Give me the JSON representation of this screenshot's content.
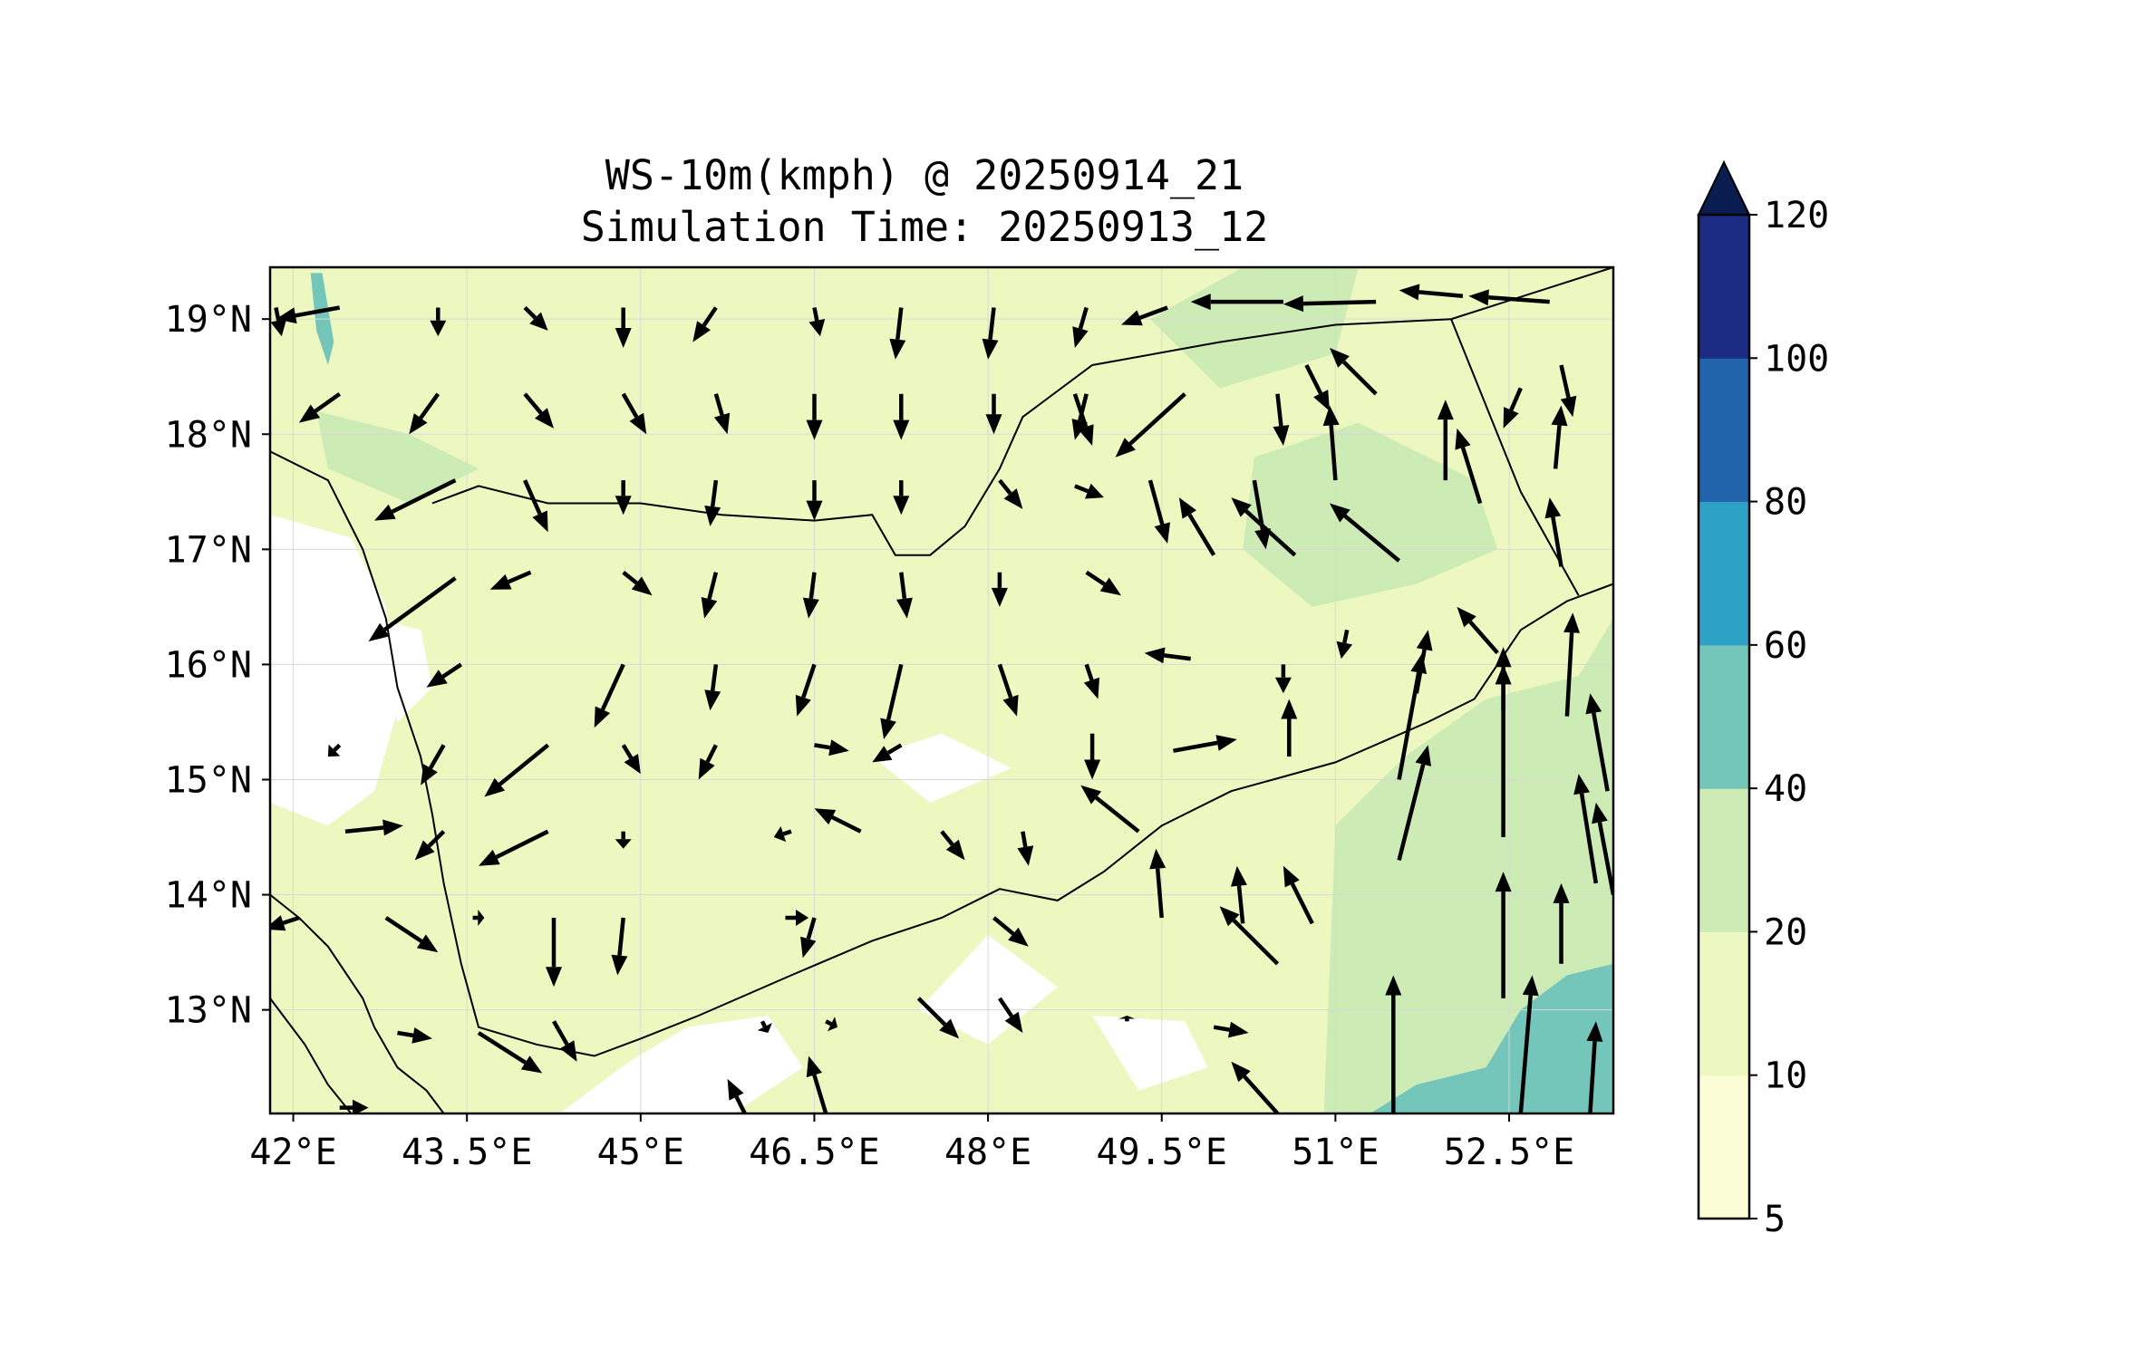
{
  "title": {
    "line1": "WS-10m(kmph) @ 20250914_21",
    "line2": "Simulation Time: 20250913_12"
  },
  "map": {
    "extent": {
      "lon": [
        41.8,
        53.4
      ],
      "lat": [
        12.1,
        19.45
      ]
    },
    "lon_ticks": [
      {
        "value": 42.0,
        "label": "42°E"
      },
      {
        "value": 43.5,
        "label": "43.5°E"
      },
      {
        "value": 45.0,
        "label": "45°E"
      },
      {
        "value": 46.5,
        "label": "46.5°E"
      },
      {
        "value": 48.0,
        "label": "48°E"
      },
      {
        "value": 49.5,
        "label": "49.5°E"
      },
      {
        "value": 51.0,
        "label": "51°E"
      },
      {
        "value": 52.5,
        "label": "52.5°E"
      }
    ],
    "lat_ticks": [
      {
        "value": 19,
        "label": "19°N"
      },
      {
        "value": 18,
        "label": "18°N"
      },
      {
        "value": 17,
        "label": "17°N"
      },
      {
        "value": 16,
        "label": "16°N"
      },
      {
        "value": 15,
        "label": "15°N"
      },
      {
        "value": 14,
        "label": "14°N"
      },
      {
        "value": 13,
        "label": "13°N"
      }
    ],
    "background_color": "#ecf8c0",
    "zones": [
      {
        "level": 5,
        "color": "#ffffff",
        "polygon": [
          [
            41.8,
            17.3
          ],
          [
            42.5,
            17.1
          ],
          [
            42.8,
            16.5
          ],
          [
            42.9,
            15.6
          ],
          [
            42.7,
            14.9
          ],
          [
            42.3,
            14.6
          ],
          [
            41.8,
            14.8
          ]
        ]
      },
      {
        "level": 5,
        "color": "#ffffff",
        "polygon": [
          [
            42.7,
            16.4
          ],
          [
            43.1,
            16.3
          ],
          [
            43.2,
            15.8
          ],
          [
            42.9,
            15.5
          ]
        ]
      },
      {
        "level": 5,
        "color": "#ffffff",
        "polygon": [
          [
            44.3,
            12.1
          ],
          [
            44.9,
            12.55
          ],
          [
            45.4,
            12.85
          ],
          [
            46.1,
            12.95
          ],
          [
            46.4,
            12.5
          ],
          [
            45.8,
            12.1
          ]
        ]
      },
      {
        "level": 5,
        "color": "#ffffff",
        "polygon": [
          [
            47.4,
            13.0
          ],
          [
            48.0,
            13.65
          ],
          [
            48.6,
            13.2
          ],
          [
            48.0,
            12.7
          ]
        ]
      },
      {
        "level": 5,
        "color": "#ffffff",
        "polygon": [
          [
            48.9,
            12.95
          ],
          [
            49.7,
            12.9
          ],
          [
            49.9,
            12.5
          ],
          [
            49.3,
            12.3
          ]
        ]
      },
      {
        "level": 5,
        "color": "#ffffff",
        "polygon": [
          [
            47.0,
            15.2
          ],
          [
            47.6,
            15.4
          ],
          [
            48.2,
            15.1
          ],
          [
            47.5,
            14.8
          ]
        ]
      },
      {
        "level": 20,
        "color": "#cdebb5",
        "polygon": [
          [
            50.3,
            17.8
          ],
          [
            51.2,
            18.1
          ],
          [
            52.2,
            17.6
          ],
          [
            52.4,
            17.0
          ],
          [
            51.7,
            16.7
          ],
          [
            50.8,
            16.5
          ],
          [
            50.2,
            17.0
          ]
        ]
      },
      {
        "level": 20,
        "color": "#cdebb5",
        "polygon": [
          [
            50.9,
            12.1
          ],
          [
            51.0,
            14.6
          ],
          [
            51.6,
            15.2
          ],
          [
            52.3,
            15.7
          ],
          [
            53.1,
            15.9
          ],
          [
            53.4,
            16.4
          ],
          [
            53.4,
            12.1
          ]
        ]
      },
      {
        "level": 20,
        "color": "#cdebb5",
        "polygon": [
          [
            42.2,
            18.2
          ],
          [
            43.0,
            18.0
          ],
          [
            43.6,
            17.7
          ],
          [
            43.0,
            17.4
          ],
          [
            42.3,
            17.7
          ]
        ]
      },
      {
        "level": 20,
        "color": "#cdebb5",
        "polygon": [
          [
            49.4,
            19.0
          ],
          [
            50.2,
            19.45
          ],
          [
            51.2,
            19.45
          ],
          [
            51.0,
            18.7
          ],
          [
            50.0,
            18.4
          ]
        ]
      },
      {
        "level": 40,
        "color": "#74c6bb",
        "polygon": [
          [
            51.3,
            12.1
          ],
          [
            51.7,
            12.35
          ],
          [
            52.3,
            12.5
          ],
          [
            52.6,
            13.0
          ],
          [
            53.0,
            13.3
          ],
          [
            53.4,
            13.4
          ],
          [
            53.4,
            12.1
          ]
        ]
      },
      {
        "level": 40,
        "color": "#74c6bb",
        "polygon": [
          [
            42.15,
            19.4
          ],
          [
            42.25,
            19.4
          ],
          [
            42.35,
            18.8
          ],
          [
            42.3,
            18.6
          ],
          [
            42.2,
            18.9
          ]
        ]
      }
    ],
    "boundaries": [
      [
        [
          41.8,
          17.85
        ],
        [
          42.3,
          17.6
        ],
        [
          42.6,
          17.0
        ],
        [
          42.8,
          16.4
        ],
        [
          42.9,
          15.8
        ],
        [
          43.1,
          15.2
        ],
        [
          43.2,
          14.7
        ],
        [
          43.3,
          14.1
        ],
        [
          43.45,
          13.4
        ],
        [
          43.6,
          12.85
        ],
        [
          44.1,
          12.7
        ],
        [
          44.6,
          12.6
        ],
        [
          45.0,
          12.75
        ],
        [
          45.5,
          12.95
        ],
        [
          46.3,
          13.3
        ],
        [
          47.0,
          13.6
        ],
        [
          47.6,
          13.8
        ],
        [
          48.1,
          14.05
        ],
        [
          48.6,
          13.95
        ],
        [
          49.0,
          14.2
        ],
        [
          49.5,
          14.6
        ],
        [
          50.1,
          14.9
        ],
        [
          51.0,
          15.15
        ],
        [
          51.8,
          15.5
        ],
        [
          52.2,
          15.7
        ],
        [
          52.6,
          16.3
        ],
        [
          53.0,
          16.55
        ],
        [
          53.4,
          16.7
        ]
      ],
      [
        [
          43.2,
          17.4
        ],
        [
          43.6,
          17.55
        ],
        [
          44.2,
          17.4
        ],
        [
          45.0,
          17.4
        ],
        [
          45.7,
          17.3
        ],
        [
          46.5,
          17.25
        ],
        [
          47.0,
          17.3
        ],
        [
          47.2,
          16.95
        ],
        [
          47.5,
          16.95
        ],
        [
          47.8,
          17.2
        ],
        [
          48.1,
          17.7
        ],
        [
          48.3,
          18.15
        ],
        [
          48.9,
          18.6
        ],
        [
          50.0,
          18.8
        ],
        [
          51.0,
          18.95
        ],
        [
          52.0,
          19.0
        ],
        [
          53.4,
          19.45
        ]
      ],
      [
        [
          52.0,
          19.0
        ],
        [
          52.6,
          17.5
        ],
        [
          53.1,
          16.6
        ]
      ],
      [
        [
          41.8,
          14.0
        ],
        [
          42.05,
          13.8
        ],
        [
          42.3,
          13.55
        ],
        [
          42.6,
          13.1
        ],
        [
          42.7,
          12.85
        ],
        [
          42.9,
          12.5
        ],
        [
          43.15,
          12.3
        ],
        [
          43.3,
          12.1
        ]
      ],
      [
        [
          41.8,
          13.1
        ],
        [
          42.1,
          12.7
        ],
        [
          42.3,
          12.35
        ],
        [
          42.5,
          12.1
        ]
      ]
    ],
    "barbs_note": "wind vectors",
    "vectors": [
      [
        41.85,
        19.1,
        0.05,
        -0.25
      ],
      [
        42.4,
        19.1,
        -0.55,
        -0.1
      ],
      [
        43.25,
        19.1,
        0.0,
        -0.25
      ],
      [
        44.0,
        19.1,
        0.2,
        -0.2
      ],
      [
        44.85,
        19.1,
        0.0,
        -0.35
      ],
      [
        45.65,
        19.1,
        -0.2,
        -0.3
      ],
      [
        46.5,
        19.1,
        0.05,
        -0.25
      ],
      [
        47.25,
        19.1,
        -0.05,
        -0.45
      ],
      [
        48.05,
        19.1,
        -0.05,
        -0.45
      ],
      [
        48.85,
        19.1,
        -0.1,
        -0.35
      ],
      [
        49.55,
        19.1,
        -0.4,
        -0.15
      ],
      [
        50.55,
        19.15,
        -0.8,
        0.0
      ],
      [
        51.35,
        19.15,
        -0.8,
        -0.02
      ],
      [
        52.1,
        19.2,
        -0.55,
        0.05
      ],
      [
        52.85,
        19.15,
        -0.7,
        0.05
      ],
      [
        42.4,
        18.35,
        -0.35,
        -0.25
      ],
      [
        43.25,
        18.35,
        -0.25,
        -0.35
      ],
      [
        44.0,
        18.35,
        0.25,
        -0.3
      ],
      [
        44.85,
        18.35,
        0.2,
        -0.35
      ],
      [
        45.65,
        18.35,
        0.1,
        -0.35
      ],
      [
        46.5,
        18.35,
        0.0,
        -0.4
      ],
      [
        47.25,
        18.35,
        0.0,
        -0.4
      ],
      [
        48.05,
        18.35,
        0.0,
        -0.35
      ],
      [
        48.75,
        18.35,
        0.15,
        -0.45
      ],
      [
        48.85,
        18.35,
        -0.1,
        -0.4
      ],
      [
        49.7,
        18.35,
        -0.6,
        -0.55
      ],
      [
        50.5,
        18.35,
        0.05,
        -0.45
      ],
      [
        50.75,
        18.6,
        0.2,
        -0.4
      ],
      [
        51.35,
        18.35,
        -0.4,
        0.4
      ],
      [
        51.95,
        17.6,
        0.0,
        0.7
      ],
      [
        52.6,
        18.4,
        -0.15,
        -0.35
      ],
      [
        52.95,
        18.6,
        0.1,
        -0.45
      ],
      [
        43.4,
        17.6,
        -0.7,
        -0.35
      ],
      [
        44.0,
        17.6,
        0.2,
        -0.45
      ],
      [
        44.85,
        17.6,
        0.0,
        -0.3
      ],
      [
        45.65,
        17.6,
        -0.05,
        -0.4
      ],
      [
        46.5,
        17.6,
        0.0,
        -0.35
      ],
      [
        47.25,
        17.6,
        0.0,
        -0.3
      ],
      [
        48.1,
        17.6,
        0.2,
        -0.25
      ],
      [
        48.75,
        17.55,
        0.25,
        -0.1
      ],
      [
        49.4,
        17.6,
        0.15,
        -0.55
      ],
      [
        50.3,
        17.6,
        0.1,
        -0.6
      ],
      [
        51.0,
        17.6,
        -0.05,
        0.65
      ],
      [
        52.25,
        17.4,
        -0.2,
        0.65
      ],
      [
        52.9,
        17.7,
        0.05,
        0.55
      ],
      [
        43.4,
        16.75,
        -0.75,
        -0.55
      ],
      [
        44.05,
        16.8,
        -0.35,
        -0.15
      ],
      [
        44.85,
        16.8,
        0.25,
        -0.2
      ],
      [
        45.65,
        16.8,
        -0.1,
        -0.4
      ],
      [
        46.5,
        16.8,
        -0.05,
        -0.4
      ],
      [
        47.25,
        16.8,
        0.05,
        -0.4
      ],
      [
        48.1,
        16.8,
        0.0,
        -0.3
      ],
      [
        48.85,
        16.8,
        0.3,
        -0.2
      ],
      [
        49.95,
        16.95,
        -0.3,
        0.5
      ],
      [
        50.65,
        16.95,
        -0.55,
        0.5
      ],
      [
        51.55,
        16.9,
        -0.6,
        0.5
      ],
      [
        52.4,
        16.1,
        -0.35,
        0.4
      ],
      [
        52.95,
        16.85,
        -0.1,
        0.6
      ],
      [
        43.45,
        16.0,
        -0.3,
        -0.2
      ],
      [
        44.85,
        16.0,
        -0.25,
        -0.55
      ],
      [
        45.65,
        16.0,
        -0.05,
        -0.4
      ],
      [
        46.5,
        16.0,
        -0.15,
        -0.45
      ],
      [
        47.25,
        16.0,
        -0.15,
        -0.65
      ],
      [
        48.1,
        16.0,
        0.15,
        -0.45
      ],
      [
        48.85,
        16.0,
        0.1,
        -0.3
      ],
      [
        49.75,
        16.05,
        -0.4,
        0.05
      ],
      [
        50.55,
        16.0,
        0.0,
        -0.25
      ],
      [
        51.1,
        16.3,
        -0.05,
        -0.25
      ],
      [
        51.7,
        15.75,
        0.1,
        0.55
      ],
      [
        52.45,
        15.6,
        0.0,
        0.55
      ],
      [
        53.0,
        15.55,
        0.05,
        0.9
      ],
      [
        42.4,
        15.3,
        -0.1,
        -0.1
      ],
      [
        43.3,
        15.3,
        -0.2,
        -0.35
      ],
      [
        44.2,
        15.3,
        -0.55,
        -0.45
      ],
      [
        44.85,
        15.3,
        0.15,
        -0.25
      ],
      [
        45.65,
        15.3,
        -0.15,
        -0.3
      ],
      [
        46.5,
        15.3,
        0.3,
        -0.05
      ],
      [
        47.25,
        15.3,
        -0.25,
        -0.15
      ],
      [
        48.9,
        15.4,
        0.0,
        -0.4
      ],
      [
        49.6,
        15.25,
        0.55,
        0.1
      ],
      [
        50.6,
        15.2,
        0.0,
        0.5
      ],
      [
        51.55,
        15.0,
        0.2,
        1.1
      ],
      [
        52.45,
        14.5,
        0.0,
        1.5
      ],
      [
        53.35,
        14.9,
        -0.15,
        0.85
      ],
      [
        52.95,
        13.4,
        0.0,
        0.7
      ],
      [
        42.45,
        14.55,
        0.5,
        0.05
      ],
      [
        43.3,
        14.55,
        -0.25,
        -0.25
      ],
      [
        44.2,
        14.55,
        -0.6,
        -0.3
      ],
      [
        44.85,
        14.55,
        0.0,
        -0.15
      ],
      [
        46.3,
        14.55,
        -0.15,
        -0.05
      ],
      [
        46.9,
        14.55,
        -0.4,
        0.2
      ],
      [
        47.6,
        14.55,
        0.2,
        -0.25
      ],
      [
        48.3,
        14.55,
        0.05,
        -0.3
      ],
      [
        49.3,
        14.55,
        -0.5,
        0.4
      ],
      [
        49.5,
        13.8,
        -0.05,
        0.6
      ],
      [
        50.2,
        13.75,
        -0.05,
        0.5
      ],
      [
        50.8,
        13.75,
        -0.25,
        0.5
      ],
      [
        51.55,
        14.3,
        0.25,
        1.0
      ],
      [
        52.45,
        13.1,
        0.0,
        1.1
      ],
      [
        53.25,
        14.1,
        -0.15,
        0.95
      ],
      [
        53.4,
        14.0,
        -0.15,
        0.8
      ],
      [
        42.05,
        13.8,
        -0.3,
        -0.1
      ],
      [
        42.8,
        13.8,
        0.45,
        -0.3
      ],
      [
        43.55,
        13.8,
        0.1,
        0.0
      ],
      [
        44.25,
        13.8,
        0.0,
        -0.6
      ],
      [
        44.85,
        13.8,
        -0.05,
        -0.5
      ],
      [
        46.25,
        13.8,
        0.2,
        0.0
      ],
      [
        46.5,
        13.8,
        -0.1,
        -0.35
      ],
      [
        48.05,
        13.8,
        0.3,
        -0.25
      ],
      [
        50.5,
        13.4,
        -0.5,
        0.5
      ],
      [
        51.5,
        12.1,
        0.0,
        1.2
      ],
      [
        52.6,
        12.1,
        0.1,
        1.2
      ],
      [
        53.2,
        12.1,
        0.05,
        0.8
      ],
      [
        42.9,
        12.8,
        0.3,
        -0.05
      ],
      [
        43.6,
        12.8,
        0.55,
        -0.35
      ],
      [
        44.25,
        12.9,
        0.2,
        -0.35
      ],
      [
        46.05,
        12.9,
        0.05,
        -0.1
      ],
      [
        46.6,
        12.9,
        0.1,
        -0.05
      ],
      [
        47.4,
        13.1,
        0.35,
        -0.35
      ],
      [
        48.1,
        13.1,
        0.2,
        -0.3
      ],
      [
        49.2,
        12.9,
        0.0,
        0.05
      ],
      [
        49.95,
        12.85,
        0.3,
        -0.05
      ],
      [
        50.5,
        12.1,
        -0.4,
        0.45
      ],
      [
        46.6,
        12.1,
        -0.15,
        0.5
      ],
      [
        45.9,
        12.1,
        -0.15,
        0.3
      ],
      [
        42.4,
        12.15,
        0.25,
        0.0
      ]
    ]
  },
  "colorbar": {
    "levels": [
      {
        "value": 5,
        "label": "5",
        "color": "#fbfdd5"
      },
      {
        "value": 10,
        "label": "10",
        "color": "#ecf8c0"
      },
      {
        "value": 20,
        "label": "20",
        "color": "#cdebb5"
      },
      {
        "value": 40,
        "label": "40",
        "color": "#74c6bb"
      },
      {
        "value": 60,
        "label": "60",
        "color": "#2ea2c6"
      },
      {
        "value": 80,
        "label": "80",
        "color": "#2264ab"
      },
      {
        "value": 100,
        "label": "100",
        "color": "#1c2c82"
      },
      {
        "value": 120,
        "label": "120",
        "color": "#0a1d50"
      }
    ]
  }
}
